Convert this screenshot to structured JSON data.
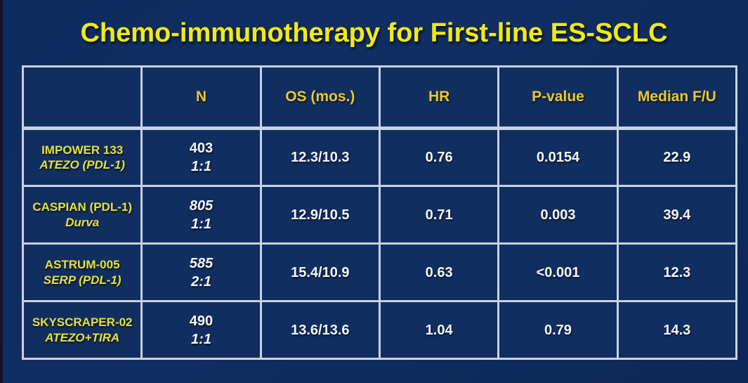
{
  "title": "Chemo-immunotherapy for First-line ES-SCLC",
  "colors": {
    "background": "#0e2c5e",
    "cell_background": "#112e60",
    "border": "#c8d3e6",
    "title_text": "#f2ea12",
    "header_text": "#e9c832",
    "trial_text": "#e7e13c",
    "value_text": "#f5f7fa"
  },
  "table": {
    "headers": {
      "trial": "",
      "n": "N",
      "os": "OS (mos.)",
      "hr": "HR",
      "p_value": "P-value",
      "median_fu": "Median F/U"
    },
    "rows": [
      {
        "trial": "IMPOWER 133",
        "agent": "ATEZO (PDL-1)",
        "n": "403",
        "ratio": "1:1",
        "os": "12.3/10.3",
        "hr": "0.76",
        "p_value": "0.0154",
        "median_fu": "22.9"
      },
      {
        "trial": "CASPIAN (PDL-1)",
        "agent": "Durva",
        "n": "805",
        "ratio": "1:1",
        "os": "12.9/10.5",
        "hr": "0.71",
        "p_value": "0.003",
        "median_fu": "39.4"
      },
      {
        "trial": "ASTRUM-005",
        "agent": "SERP (PDL-1)",
        "n": "585",
        "ratio": "2:1",
        "os": "15.4/10.9",
        "hr": "0.63",
        "p_value": "<0.001",
        "median_fu": "12.3"
      },
      {
        "trial": "SKYSCRAPER-02",
        "agent": "ATEZO+TIRA",
        "n": "490",
        "ratio": "1:1",
        "os": "13.6/13.6",
        "hr": "1.04",
        "p_value": "0.79",
        "median_fu": "14.3"
      }
    ]
  }
}
